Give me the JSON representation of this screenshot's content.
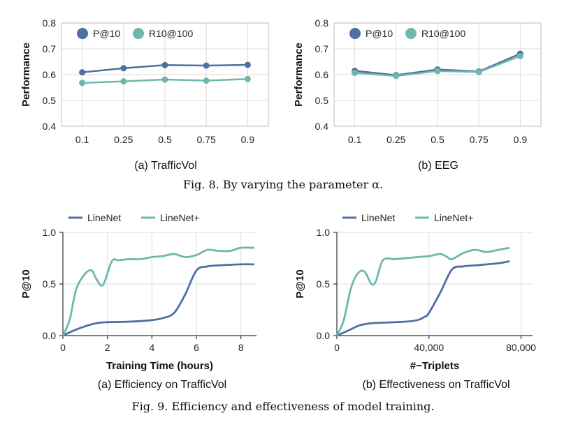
{
  "colors": {
    "dark": "#4e6fa3",
    "light": "#6fb7ad"
  },
  "captions": {
    "fig8": "Fig. 8.  By varying the parameter α.",
    "fig9": "Fig. 9.  Efficiency and effectiveness of model training."
  },
  "chart_data": [
    {
      "type": "line",
      "subcaption": "(a) TrafficVol",
      "categories": [
        "0.1",
        "0.25",
        "0.5",
        "0.75",
        "0.9"
      ],
      "ylabel": "Performance",
      "xlabel": "",
      "ylim": [
        0.4,
        0.8
      ],
      "yticks": [
        "0.4",
        "0.5",
        "0.6",
        "0.7",
        "0.8"
      ],
      "legend_position": "top-left",
      "grid": true,
      "series": [
        {
          "name": "P@10",
          "values": [
            0.609,
            0.625,
            0.637,
            0.635,
            0.638
          ]
        },
        {
          "name": "R10@100",
          "values": [
            0.568,
            0.574,
            0.581,
            0.577,
            0.583
          ]
        }
      ]
    },
    {
      "type": "line",
      "subcaption": "(b) EEG",
      "categories": [
        "0.1",
        "0.25",
        "0.5",
        "0.75",
        "0.9"
      ],
      "ylabel": "Performance",
      "xlabel": "",
      "ylim": [
        0.4,
        0.8
      ],
      "yticks": [
        "0.4",
        "0.5",
        "0.6",
        "0.7",
        "0.8"
      ],
      "legend_position": "top-left",
      "grid": true,
      "series": [
        {
          "name": "P@10",
          "values": [
            0.615,
            0.598,
            0.62,
            0.612,
            0.681
          ]
        },
        {
          "name": "R10@100",
          "values": [
            0.607,
            0.595,
            0.614,
            0.61,
            0.672
          ]
        }
      ]
    },
    {
      "type": "line",
      "subcaption": "(a) Efficiency on TrafficVol",
      "xlabel": "Training Time (hours)",
      "ylabel": "P@10",
      "xlim": [
        0,
        8.7
      ],
      "ylim": [
        0,
        1.0
      ],
      "xticks": [
        0,
        2,
        4,
        6,
        8
      ],
      "xtick_labels": [
        "0",
        "2",
        "4",
        "6",
        "8"
      ],
      "yticks": [
        "0.0",
        "0.5",
        "1.0"
      ],
      "legend_position": "top",
      "grid": true,
      "series": [
        {
          "name": "LineNet",
          "x": [
            0,
            0.5,
            1.0,
            1.5,
            2.0,
            3.0,
            4.0,
            4.5,
            5.0,
            5.5,
            6.0,
            6.5,
            7.0,
            8.0,
            8.6
          ],
          "values": [
            0.0,
            0.05,
            0.09,
            0.12,
            0.13,
            0.135,
            0.15,
            0.17,
            0.22,
            0.4,
            0.63,
            0.67,
            0.68,
            0.69,
            0.69
          ]
        },
        {
          "name": "LineNet+",
          "x": [
            0,
            0.3,
            0.6,
            1.0,
            1.3,
            1.5,
            1.8,
            2.2,
            2.5,
            3.0,
            3.5,
            4.0,
            4.5,
            5.0,
            5.5,
            6.0,
            6.5,
            7.0,
            7.5,
            8.0,
            8.6
          ],
          "values": [
            0.0,
            0.15,
            0.45,
            0.6,
            0.63,
            0.55,
            0.49,
            0.72,
            0.73,
            0.74,
            0.74,
            0.76,
            0.77,
            0.79,
            0.76,
            0.78,
            0.83,
            0.82,
            0.82,
            0.85,
            0.85
          ]
        }
      ]
    },
    {
      "type": "line",
      "subcaption": "(b) Effectiveness on TrafficVol",
      "xlabel": "#−Triplets",
      "ylabel": "P@10",
      "xlim": [
        0,
        85000
      ],
      "ylim": [
        0,
        1.0
      ],
      "xticks": [
        0,
        40000,
        80000
      ],
      "xtick_labels": [
        "0",
        "40,000",
        "80,000"
      ],
      "yticks": [
        "0.0",
        "0.5",
        "1.0"
      ],
      "legend_position": "top",
      "grid": true,
      "series": [
        {
          "name": "LineNet",
          "x": [
            0,
            5000,
            10000,
            15000,
            20000,
            30000,
            35000,
            38000,
            40000,
            45000,
            50000,
            55000,
            60000,
            70000,
            75000
          ],
          "values": [
            0.0,
            0.05,
            0.1,
            0.12,
            0.125,
            0.135,
            0.15,
            0.18,
            0.22,
            0.42,
            0.64,
            0.67,
            0.68,
            0.7,
            0.72
          ]
        },
        {
          "name": "LineNet+",
          "x": [
            0,
            3000,
            6000,
            9000,
            12000,
            15000,
            17000,
            20000,
            25000,
            30000,
            35000,
            40000,
            45000,
            48000,
            50000,
            55000,
            60000,
            65000,
            70000,
            75000
          ],
          "values": [
            0.0,
            0.15,
            0.45,
            0.6,
            0.62,
            0.5,
            0.53,
            0.73,
            0.74,
            0.75,
            0.76,
            0.77,
            0.79,
            0.76,
            0.74,
            0.8,
            0.83,
            0.81,
            0.83,
            0.85
          ]
        }
      ]
    }
  ]
}
